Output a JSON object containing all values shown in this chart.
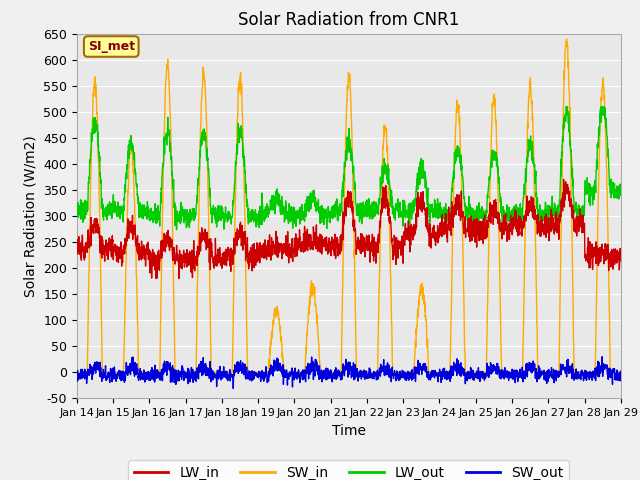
{
  "title": "Solar Radiation from CNR1",
  "ylabel": "Solar Radiation (W/m2)",
  "xlabel": "Time",
  "ylim": [
    -50,
    650
  ],
  "yticks": [
    -50,
    0,
    50,
    100,
    150,
    200,
    250,
    300,
    350,
    400,
    450,
    500,
    550,
    600,
    650
  ],
  "xlim_days": [
    0,
    15
  ],
  "xtick_labels": [
    "Jan 14",
    "Jan 15",
    "Jan 16",
    "Jan 17",
    "Jan 18",
    "Jan 19",
    "Jan 20",
    "Jan 21",
    "Jan 22",
    "Jan 23",
    "Jan 24",
    "Jan 25",
    "Jan 26",
    "Jan 27",
    "Jan 28",
    "Jan 29"
  ],
  "colors": {
    "LW_in": "#cc0000",
    "SW_in": "#ffaa00",
    "LW_out": "#00cc00",
    "SW_out": "#0000dd",
    "background": "#e8e8e8",
    "grid": "#ffffff"
  },
  "annotation_text": "SI_met",
  "annotation_bg": "#ffff99",
  "annotation_border": "#aa6600",
  "linewidth": 1.0,
  "figsize": [
    6.4,
    4.8
  ],
  "dpi": 100
}
